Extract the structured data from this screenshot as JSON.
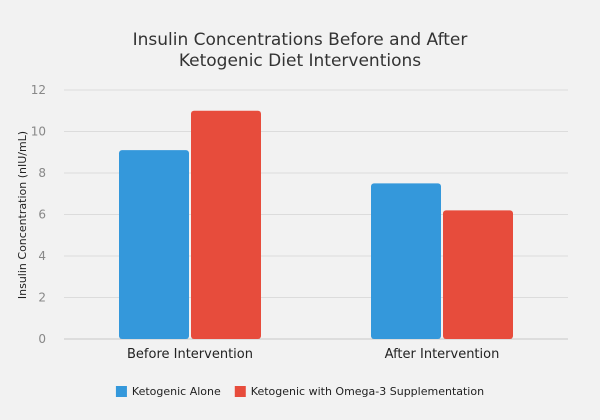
{
  "chart_data": {
    "type": "bar",
    "title_lines": [
      "Insulin Concentrations Before and After",
      "Ketogenic Diet Interventions"
    ],
    "ylabel": "Insulin Concentration (nIU/mL)",
    "xlabel": "",
    "categories": [
      "Before Intervention",
      "After Intervention"
    ],
    "ylim": [
      0,
      12
    ],
    "yticks": [
      0,
      2,
      4,
      6,
      8,
      10,
      12
    ],
    "grid": true,
    "legend_position": "bottom",
    "series": [
      {
        "name": "Ketogenic Alone",
        "color": "#3498db",
        "values": [
          9.1,
          7.5
        ]
      },
      {
        "name": "Ketogenic with Omega-3 Supplementation",
        "color": "#e74c3c",
        "values": [
          11.0,
          6.2
        ]
      }
    ]
  }
}
